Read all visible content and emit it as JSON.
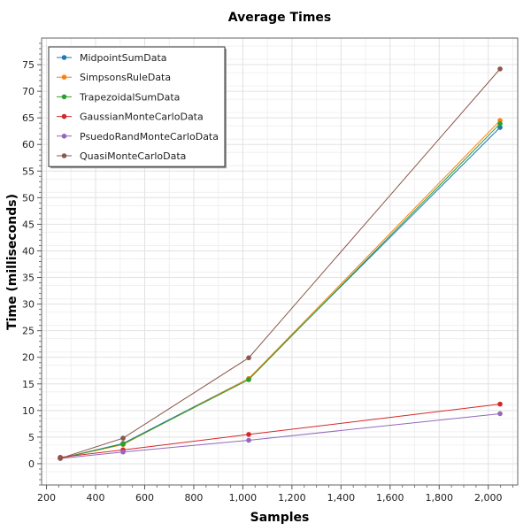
{
  "chart_data": {
    "type": "line",
    "title": "Average Times",
    "xlabel": "Samples",
    "ylabel": "Time (milliseconds)",
    "xlim": [
      180,
      2120
    ],
    "ylim": [
      -4,
      80
    ],
    "xticks": [
      200,
      400,
      600,
      800,
      1000,
      1200,
      1400,
      1600,
      1800,
      2000
    ],
    "xtick_labels": [
      "200",
      "400",
      "600",
      "800",
      "1,000",
      "1,200",
      "1,400",
      "1,600",
      "1,800",
      "2,000"
    ],
    "yticks": [
      0,
      5,
      10,
      15,
      20,
      25,
      30,
      35,
      40,
      45,
      50,
      55,
      60,
      65,
      70,
      75
    ],
    "ytick_labels": [
      "0",
      "5",
      "10",
      "15",
      "20",
      "25",
      "30",
      "35",
      "40",
      "45",
      "50",
      "55",
      "60",
      "65",
      "70",
      "75"
    ],
    "grid": true,
    "legend_position": "top-left",
    "x": [
      256,
      512,
      1024,
      2048
    ],
    "series": [
      {
        "name": "MidpointSumData",
        "color": "#1f77b4",
        "values": [
          1.0,
          3.8,
          16.0,
          63.2
        ]
      },
      {
        "name": "SimpsonsRuleData",
        "color": "#ff7f0e",
        "values": [
          1.0,
          3.6,
          16.0,
          64.5
        ]
      },
      {
        "name": "TrapezoidalSumData",
        "color": "#2ca02c",
        "values": [
          1.0,
          3.7,
          15.8,
          63.9
        ]
      },
      {
        "name": "GaussianMonteCarloData",
        "color": "#d62728",
        "values": [
          1.2,
          2.6,
          5.5,
          11.2
        ]
      },
      {
        "name": "PsuedoRandMonteCarloData",
        "color": "#9467bd",
        "values": [
          1.0,
          2.2,
          4.4,
          9.4
        ]
      },
      {
        "name": "QuasiMonteCarloData",
        "color": "#8c564b",
        "values": [
          1.0,
          4.8,
          19.9,
          74.2
        ]
      }
    ]
  }
}
